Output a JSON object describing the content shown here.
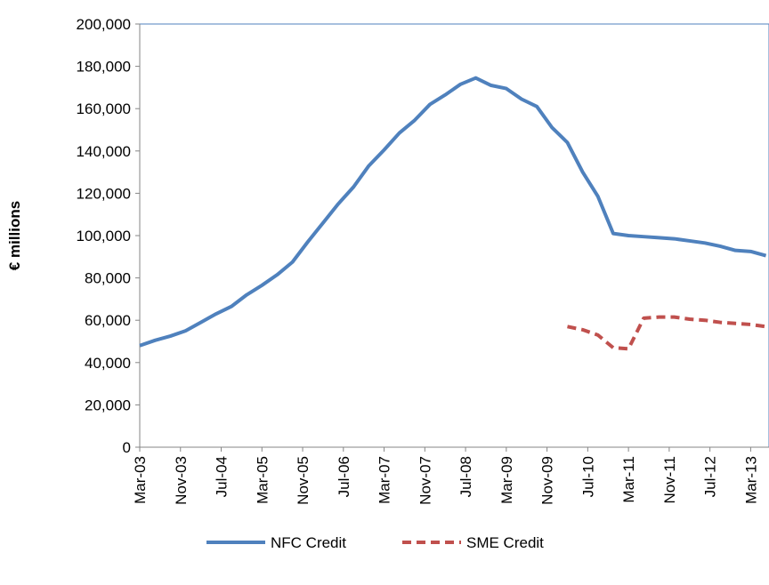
{
  "chart_data": {
    "type": "line",
    "y_label": "€ millions",
    "x": [
      "Mar-03",
      "Jun-03",
      "Sep-03",
      "Dec-03",
      "Mar-04",
      "Jun-04",
      "Sep-04",
      "Dec-04",
      "Mar-05",
      "Jun-05",
      "Sep-05",
      "Dec-05",
      "Mar-06",
      "Jun-06",
      "Sep-06",
      "Dec-06",
      "Mar-07",
      "Jun-07",
      "Sep-07",
      "Dec-07",
      "Mar-08",
      "Jun-08",
      "Sep-08",
      "Dec-08",
      "Mar-09",
      "Jun-09",
      "Sep-09",
      "Dec-09",
      "Mar-10",
      "Jun-10",
      "Sep-10",
      "Dec-10",
      "Mar-11",
      "Jun-11",
      "Sep-11",
      "Dec-11",
      "Mar-12",
      "Jun-12",
      "Sep-12",
      "Dec-12",
      "Mar-13",
      "Jun-13"
    ],
    "series": [
      {
        "name": "NFC Credit",
        "color": "#4f81bd",
        "dash": false,
        "values": [
          48000,
          50500,
          52500,
          55000,
          59000,
          63000,
          66500,
          72000,
          76500,
          81500,
          87500,
          97000,
          106000,
          115000,
          123000,
          133000,
          140500,
          148500,
          154500,
          162000,
          166500,
          171500,
          174500,
          171000,
          169500,
          164500,
          161000,
          151000,
          144000,
          130000,
          118500,
          101000,
          100000,
          99500,
          99000,
          98500,
          97500,
          96500,
          95000,
          93000,
          92500,
          90500
        ]
      },
      {
        "name": "SME Credit",
        "color": "#c0504d",
        "dash": true,
        "values": [
          null,
          null,
          null,
          null,
          null,
          null,
          null,
          null,
          null,
          null,
          null,
          null,
          null,
          null,
          null,
          null,
          null,
          null,
          null,
          null,
          null,
          null,
          null,
          null,
          null,
          null,
          null,
          null,
          57000,
          55500,
          53000,
          47000,
          46500,
          61000,
          61500,
          61500,
          60500,
          60000,
          59000,
          58500,
          58000,
          57000
        ]
      }
    ],
    "ylim": [
      0,
      200000
    ],
    "yticks": [
      0,
      {
        "value": 20000,
        "label": "20,000"
      },
      {
        "value": 40000,
        "label": "40,000"
      },
      {
        "value": 60000,
        "label": "60,000"
      },
      {
        "value": 80000,
        "label": "80,000"
      },
      {
        "value": 100000,
        "label": "100,000"
      },
      {
        "value": 120000,
        "label": "120,000"
      },
      {
        "value": 140000,
        "label": "140,000"
      },
      {
        "value": 160000,
        "label": "160,000"
      },
      {
        "value": 180000,
        "label": "180,000"
      },
      {
        "value": 200000,
        "label": "200,000"
      }
    ],
    "xticks": [
      "Mar-03",
      "Nov-03",
      "Jul-04",
      "Mar-05",
      "Nov-05",
      "Jul-06",
      "Mar-07",
      "Nov-07",
      "Jul-08",
      "Mar-09",
      "Nov-09",
      "Jul-10",
      "Mar-11",
      "Nov-11",
      "Jul-12",
      "Mar-13"
    ],
    "legend": "bottom"
  }
}
